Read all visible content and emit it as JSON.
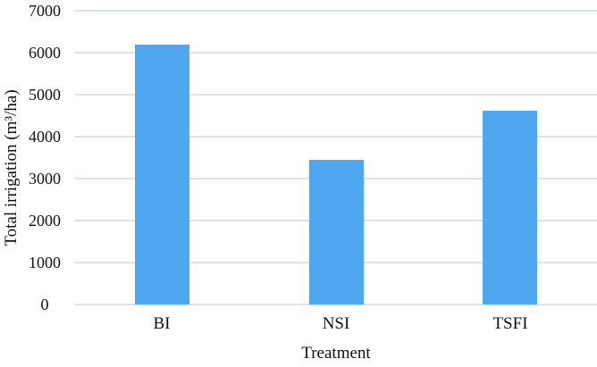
{
  "chart_data": {
    "type": "bar",
    "title": "",
    "categories": [
      "BI",
      "NSI",
      "TSFI"
    ],
    "values": [
      6200,
      3450,
      4620
    ],
    "xlabel": "Treatment",
    "ylabel": "Total irrigation (m³/ha)",
    "ylim": [
      0,
      7000
    ],
    "yticks": [
      0,
      1000,
      2000,
      3000,
      4000,
      5000,
      6000,
      7000
    ],
    "grid": true,
    "legend": false,
    "colors": {
      "bar": "#4FA7F0",
      "gridline": "#DCE3E0",
      "text": "#111111",
      "background": "#FFFFFF"
    }
  }
}
